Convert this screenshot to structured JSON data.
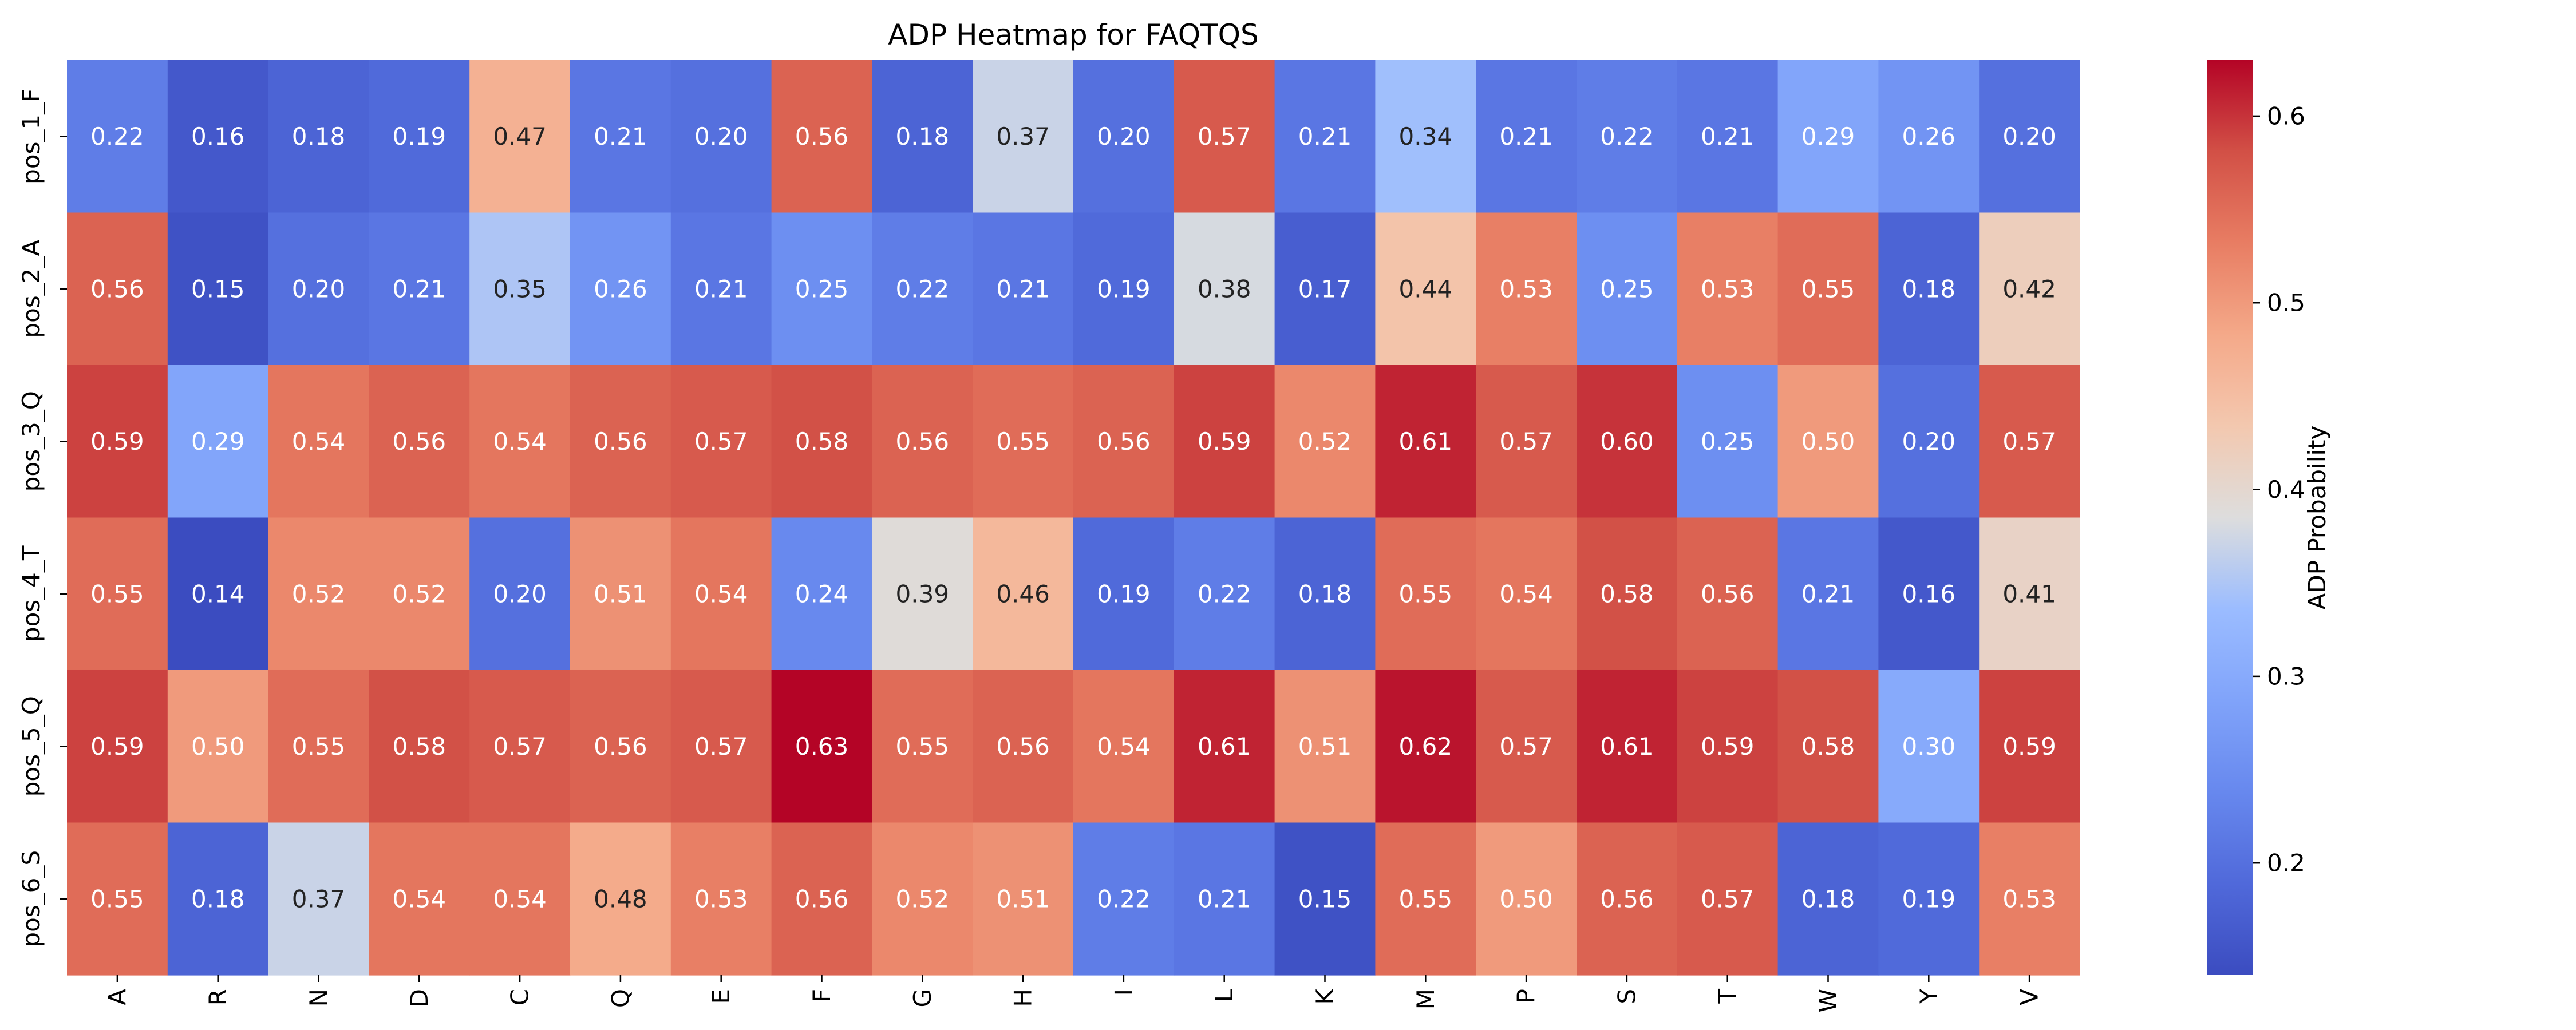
{
  "chart_data": {
    "type": "heatmap",
    "title": "ADP Heatmap for FAQTQS",
    "xlabel": "",
    "ylabel": "",
    "x_categories": [
      "A",
      "R",
      "N",
      "D",
      "C",
      "Q",
      "E",
      "F",
      "G",
      "H",
      "I",
      "L",
      "K",
      "M",
      "P",
      "S",
      "T",
      "W",
      "Y",
      "V"
    ],
    "y_categories": [
      "pos_1_F",
      "pos_2_A",
      "pos_3_Q",
      "pos_4_T",
      "pos_5_Q",
      "pos_6_S"
    ],
    "values": [
      [
        0.22,
        0.16,
        0.18,
        0.19,
        0.47,
        0.21,
        0.2,
        0.56,
        0.18,
        0.37,
        0.2,
        0.57,
        0.21,
        0.34,
        0.21,
        0.22,
        0.21,
        0.29,
        0.26,
        0.2
      ],
      [
        0.56,
        0.15,
        0.2,
        0.21,
        0.35,
        0.26,
        0.21,
        0.25,
        0.22,
        0.21,
        0.19,
        0.38,
        0.17,
        0.44,
        0.53,
        0.25,
        0.53,
        0.55,
        0.18,
        0.42
      ],
      [
        0.59,
        0.29,
        0.54,
        0.56,
        0.54,
        0.56,
        0.57,
        0.58,
        0.56,
        0.55,
        0.56,
        0.59,
        0.52,
        0.61,
        0.57,
        0.6,
        0.25,
        0.5,
        0.2,
        0.57
      ],
      [
        0.55,
        0.14,
        0.52,
        0.52,
        0.2,
        0.51,
        0.54,
        0.24,
        0.39,
        0.46,
        0.19,
        0.22,
        0.18,
        0.55,
        0.54,
        0.58,
        0.56,
        0.21,
        0.16,
        0.41
      ],
      [
        0.59,
        0.5,
        0.55,
        0.58,
        0.57,
        0.56,
        0.57,
        0.63,
        0.55,
        0.56,
        0.54,
        0.61,
        0.51,
        0.62,
        0.57,
        0.61,
        0.59,
        0.58,
        0.3,
        0.59
      ],
      [
        0.55,
        0.18,
        0.37,
        0.54,
        0.54,
        0.48,
        0.53,
        0.56,
        0.52,
        0.51,
        0.22,
        0.21,
        0.15,
        0.55,
        0.5,
        0.56,
        0.57,
        0.18,
        0.19,
        0.53
      ]
    ],
    "value_format": "2 decimals",
    "colormap": "coolwarm",
    "vmin": 0.14,
    "vmax": 0.63,
    "colorbar": {
      "label": "ADP Probability",
      "ticks": [
        0.2,
        0.3,
        0.4,
        0.5,
        0.6
      ],
      "tick_labels": [
        "0.2",
        "0.3",
        "0.4",
        "0.5",
        "0.6"
      ],
      "placement": "right"
    },
    "grid": false
  }
}
